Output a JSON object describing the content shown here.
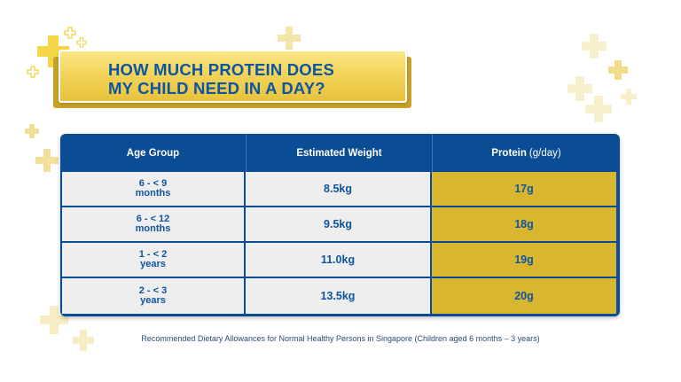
{
  "title": {
    "line1": "HOW MUCH PROTEIN DOES",
    "line2": "MY CHILD NEED IN A DAY?"
  },
  "table": {
    "headers": {
      "age": "Age Group",
      "weight": "Estimated Weight",
      "protein": "Protein",
      "protein_unit": "(g/day)"
    },
    "rows": [
      {
        "age": "6 - < 9 months",
        "weight": "8.5kg",
        "protein": "17g"
      },
      {
        "age": "6 - < 12 months",
        "weight": "9.5kg",
        "protein": "18g"
      },
      {
        "age": "1 - < 2 years",
        "weight": "11.0kg",
        "protein": "19g"
      },
      {
        "age": "2 - < 3 years",
        "weight": "13.5kg",
        "protein": "20g"
      }
    ]
  },
  "footnote": "Recommended Dietary Allowances for Normal Healthy Persons in Singapore (Children aged 6 months – 3 years)",
  "colors": {
    "navy": "#0b4d95",
    "title_blue": "#0e55a0",
    "gold": "#d8b62f",
    "banner_yellow": "#f3d45a",
    "cell_grey": "#eeeeee"
  }
}
